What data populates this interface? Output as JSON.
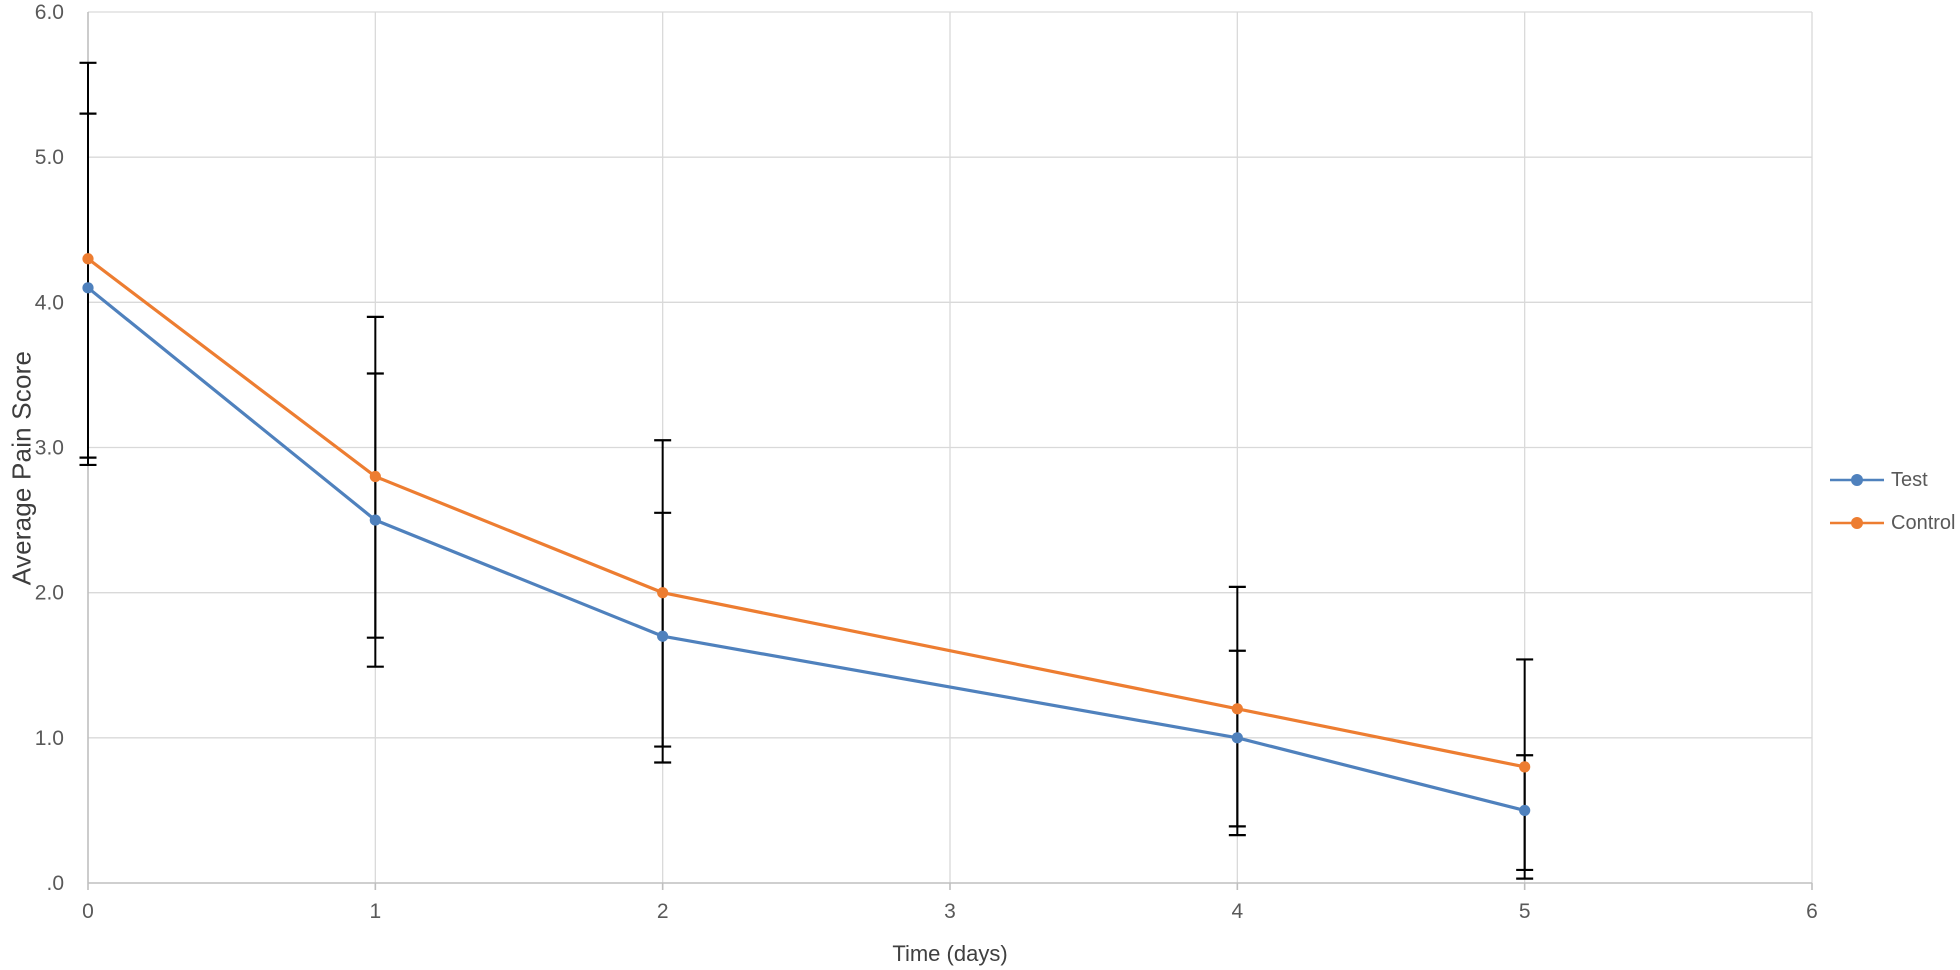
{
  "chart_data": {
    "type": "line",
    "title": "",
    "xlabel": "Time (days)",
    "ylabel": "Average Pain Score",
    "xlim": [
      0,
      6
    ],
    "ylim": [
      0,
      6
    ],
    "x_tick_labels": [
      "0",
      "1",
      "2",
      "3",
      "4",
      "5",
      "6"
    ],
    "y_tick_labels": [
      ".0",
      "1.0",
      "2.0",
      "3.0",
      "4.0",
      "5.0",
      "6.0"
    ],
    "grid": true,
    "legend_position": "right-middle",
    "error_bars": true,
    "series": [
      {
        "name": "Test",
        "color": "#4F81BD",
        "x": [
          0,
          1,
          2,
          4,
          5
        ],
        "y": [
          4.1,
          2.5,
          1.7,
          1.0,
          0.5
        ],
        "error_plus": [
          1.2,
          1.01,
          0.85,
          0.6,
          0.38
        ],
        "error_minus": [
          1.22,
          1.01,
          0.87,
          0.67,
          0.47
        ]
      },
      {
        "name": "Control",
        "color": "#ED7D31",
        "x": [
          0,
          1,
          2,
          4,
          5
        ],
        "y": [
          4.3,
          2.8,
          2.0,
          1.2,
          0.8
        ],
        "error_plus": [
          1.35,
          1.1,
          1.05,
          0.84,
          0.74
        ],
        "error_minus": [
          1.37,
          1.11,
          1.06,
          0.81,
          0.71
        ]
      }
    ],
    "colors": {
      "gridline": "#D9D9D9",
      "axis": "#BFBFBF",
      "tick_label": "#595959",
      "axis_title": "#404040",
      "error_bar": "#000000",
      "background": "#FFFFFF"
    }
  }
}
